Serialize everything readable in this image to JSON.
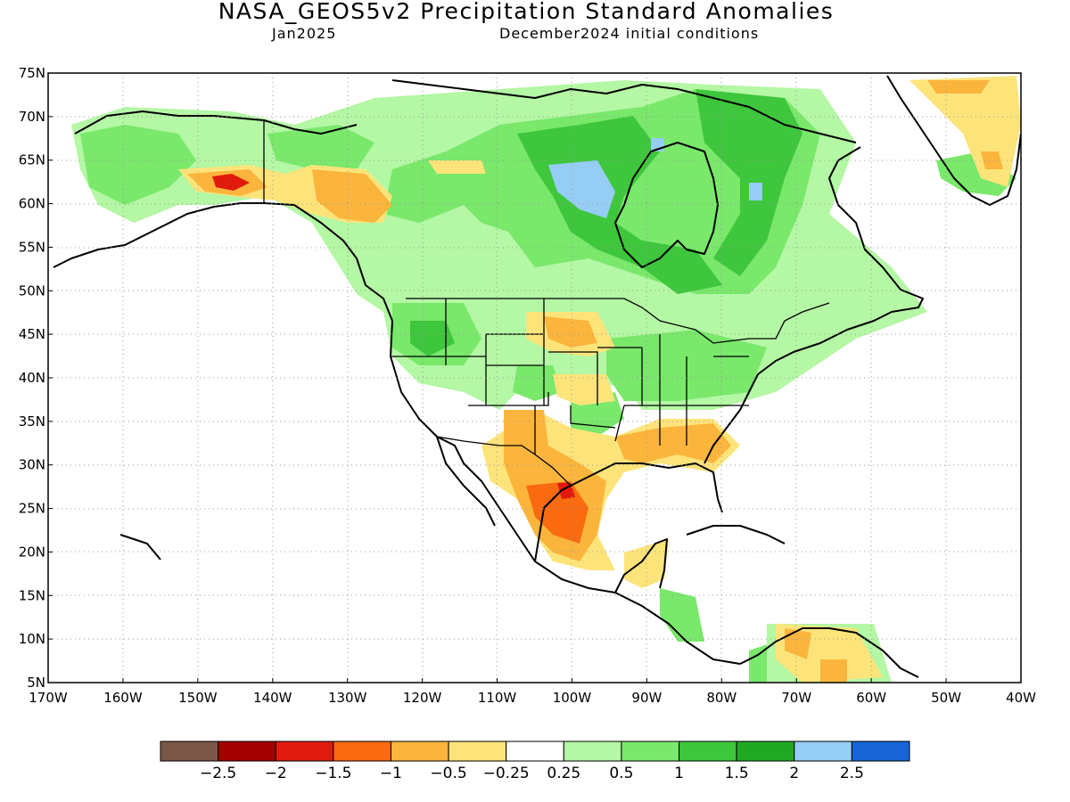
{
  "header": {
    "title": "NASA_GEOS5v2 Precipitation Standard Anomalies",
    "month": "Jan2025",
    "initial_conditions": "December2024 initial conditions"
  },
  "map": {
    "lat_labels": [
      "75N",
      "70N",
      "65N",
      "60N",
      "55N",
      "50N",
      "45N",
      "40N",
      "35N",
      "30N",
      "25N",
      "20N",
      "15N",
      "10N",
      "5N"
    ],
    "lon_labels": [
      "170W",
      "160W",
      "150W",
      "140W",
      "130W",
      "120W",
      "110W",
      "100W",
      "90W",
      "80W",
      "70W",
      "60W",
      "50W",
      "40W"
    ],
    "lat_range": [
      5,
      75
    ],
    "lon_range": [
      -170,
      -40
    ],
    "grid": "dotted"
  },
  "colorbar": {
    "colors": [
      "#7a5747",
      "#a30000",
      "#e01a0c",
      "#fa6a10",
      "#fbb53c",
      "#fde47a",
      "#ffffff",
      "#b4f7a4",
      "#79e86b",
      "#3ec63c",
      "#21a823",
      "#95cdf5",
      "#1764d6"
    ],
    "labels": [
      "−2.5",
      "−2",
      "−1.5",
      "−1",
      "−0.5",
      "−0.25",
      "0.25",
      "0.5",
      "1",
      "1.5",
      "2",
      "2.5"
    ]
  }
}
